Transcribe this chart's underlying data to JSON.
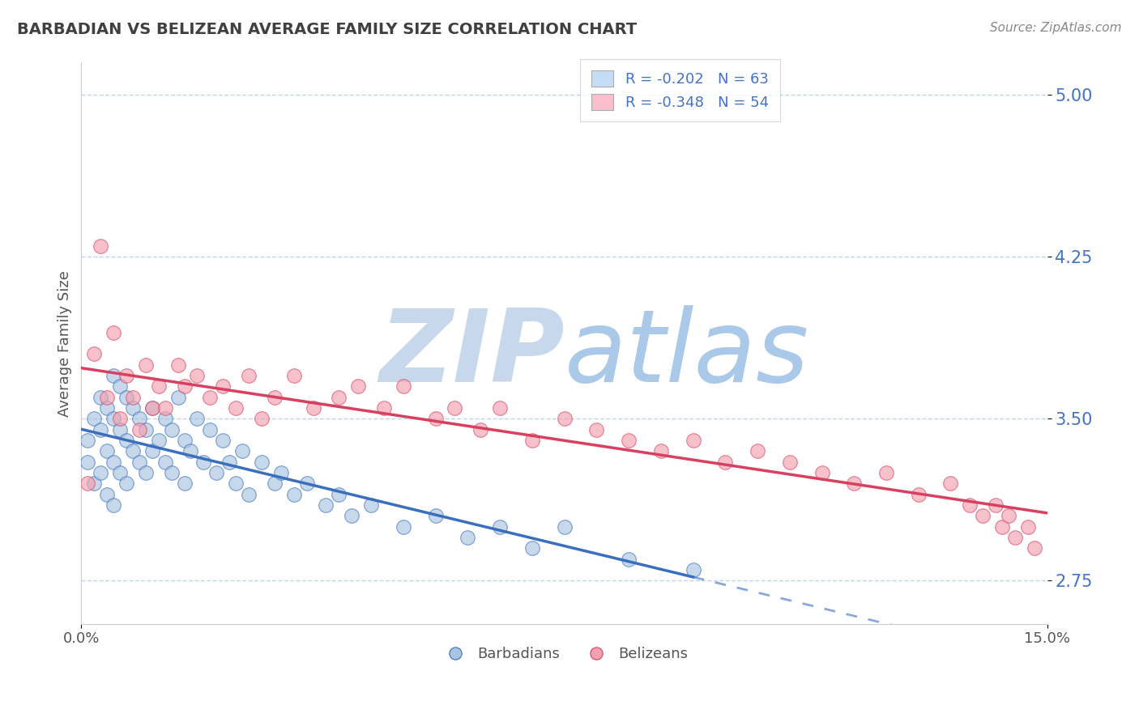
{
  "title": "BARBADIAN VS BELIZEAN AVERAGE FAMILY SIZE CORRELATION CHART",
  "source_text": "Source: ZipAtlas.com",
  "ylabel": "Average Family Size",
  "xlim": [
    0.0,
    0.15
  ],
  "ylim": [
    2.55,
    5.15
  ],
  "yticks": [
    2.75,
    3.5,
    4.25,
    5.0
  ],
  "xticks": [
    0.0,
    0.15
  ],
  "xticklabels": [
    "0.0%",
    "15.0%"
  ],
  "yticklabels": [
    "2.75",
    "3.50",
    "4.25",
    "5.00"
  ],
  "barbadian_R": -0.202,
  "barbadian_N": 63,
  "belizean_R": -0.348,
  "belizean_N": 54,
  "barbadian_color": "#a8c4e0",
  "belizean_color": "#f4a0b0",
  "trend_barbadian_color": "#3a6fbd",
  "trend_belizean_color": "#d94060",
  "axis_color": "#4472c4",
  "legend_box_barbadian": "#c5ddf4",
  "legend_box_belizean": "#f9c0cc",
  "background_color": "#ffffff",
  "grid_color": "#c0d4e8",
  "watermark_color": "#dce8f5",
  "title_color": "#404040",
  "watermark_text": "ZIPatlas",
  "barbadian_x": [
    0.001,
    0.001,
    0.002,
    0.002,
    0.003,
    0.003,
    0.003,
    0.004,
    0.004,
    0.004,
    0.005,
    0.005,
    0.005,
    0.005,
    0.006,
    0.006,
    0.006,
    0.007,
    0.007,
    0.007,
    0.008,
    0.008,
    0.009,
    0.009,
    0.01,
    0.01,
    0.011,
    0.011,
    0.012,
    0.013,
    0.013,
    0.014,
    0.014,
    0.015,
    0.016,
    0.016,
    0.017,
    0.018,
    0.019,
    0.02,
    0.021,
    0.022,
    0.023,
    0.024,
    0.025,
    0.026,
    0.028,
    0.03,
    0.031,
    0.033,
    0.035,
    0.038,
    0.04,
    0.042,
    0.045,
    0.05,
    0.055,
    0.06,
    0.065,
    0.07,
    0.075,
    0.085,
    0.095
  ],
  "barbadian_y": [
    3.4,
    3.3,
    3.5,
    3.2,
    3.6,
    3.45,
    3.25,
    3.55,
    3.35,
    3.15,
    3.7,
    3.5,
    3.3,
    3.1,
    3.65,
    3.45,
    3.25,
    3.6,
    3.4,
    3.2,
    3.55,
    3.35,
    3.5,
    3.3,
    3.45,
    3.25,
    3.55,
    3.35,
    3.4,
    3.5,
    3.3,
    3.45,
    3.25,
    3.6,
    3.4,
    3.2,
    3.35,
    3.5,
    3.3,
    3.45,
    3.25,
    3.4,
    3.3,
    3.2,
    3.35,
    3.15,
    3.3,
    3.2,
    3.25,
    3.15,
    3.2,
    3.1,
    3.15,
    3.05,
    3.1,
    3.0,
    3.05,
    2.95,
    3.0,
    2.9,
    3.0,
    2.85,
    2.8
  ],
  "belizean_x": [
    0.001,
    0.002,
    0.003,
    0.004,
    0.005,
    0.006,
    0.007,
    0.008,
    0.009,
    0.01,
    0.011,
    0.012,
    0.013,
    0.015,
    0.016,
    0.018,
    0.02,
    0.022,
    0.024,
    0.026,
    0.028,
    0.03,
    0.033,
    0.036,
    0.04,
    0.043,
    0.047,
    0.05,
    0.055,
    0.058,
    0.062,
    0.065,
    0.07,
    0.075,
    0.08,
    0.085,
    0.09,
    0.095,
    0.1,
    0.105,
    0.11,
    0.115,
    0.12,
    0.125,
    0.13,
    0.135,
    0.138,
    0.14,
    0.142,
    0.143,
    0.144,
    0.145,
    0.147,
    0.148
  ],
  "belizean_y": [
    3.2,
    3.8,
    4.3,
    3.6,
    3.9,
    3.5,
    3.7,
    3.6,
    3.45,
    3.75,
    3.55,
    3.65,
    3.55,
    3.75,
    3.65,
    3.7,
    3.6,
    3.65,
    3.55,
    3.7,
    3.5,
    3.6,
    3.7,
    3.55,
    3.6,
    3.65,
    3.55,
    3.65,
    3.5,
    3.55,
    3.45,
    3.55,
    3.4,
    3.5,
    3.45,
    3.4,
    3.35,
    3.4,
    3.3,
    3.35,
    3.3,
    3.25,
    3.2,
    3.25,
    3.15,
    3.2,
    3.1,
    3.05,
    3.1,
    3.0,
    3.05,
    2.95,
    3.0,
    2.9
  ]
}
